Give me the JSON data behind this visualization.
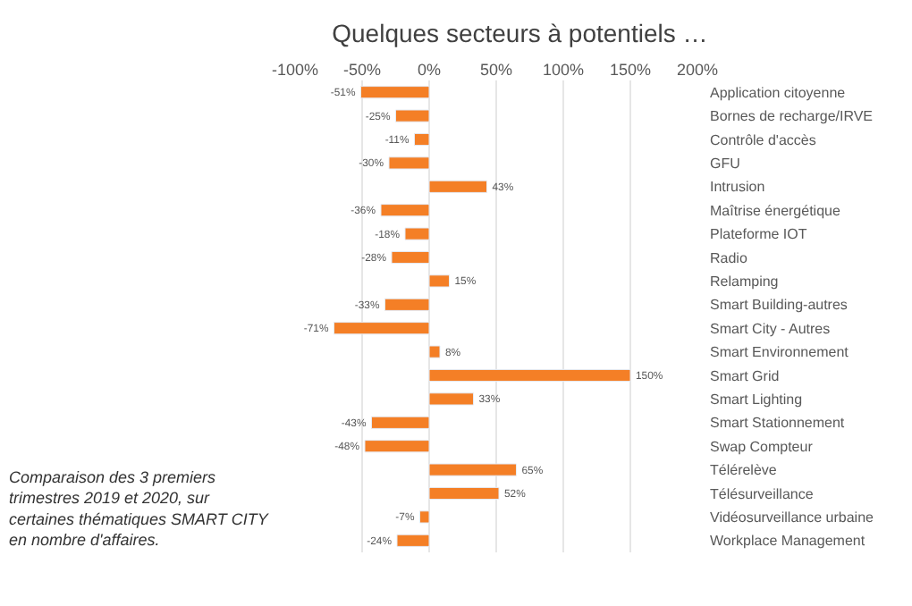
{
  "chart_data": {
    "type": "bar",
    "orientation": "horizontal",
    "title": "Quelques secteurs à potentiels …",
    "categories": [
      "Application citoyenne",
      "Bornes de recharge/IRVE",
      "Contrôle d'accès",
      "GFU",
      "Intrusion",
      "Maîtrise énergétique",
      "Plateforme IOT",
      "Radio",
      "Relamping",
      "Smart Building-autres",
      "Smart City - Autres",
      "Smart Environnement",
      "Smart Grid",
      "Smart Lighting",
      "Smart Stationnement",
      "Swap Compteur",
      "Télérelève",
      "Télésurveillance",
      "Vidéosurveillance urbaine",
      "Workplace Management"
    ],
    "values": [
      -51,
      -25,
      -11,
      -30,
      43,
      -36,
      -18,
      -28,
      15,
      -33,
      -71,
      8,
      150,
      33,
      -43,
      -48,
      65,
      52,
      -7,
      -24
    ],
    "value_labels": [
      "-51%",
      "-25%",
      "-11%",
      "-30%",
      "43%",
      "-36%",
      "-18%",
      "-28%",
      "15%",
      "-33%",
      "-71%",
      "8%",
      "150%",
      "33%",
      "-43%",
      "-48%",
      "65%",
      "52%",
      "-7%",
      "-24%"
    ],
    "color": "#f47f26",
    "xlim": [
      -100,
      200
    ],
    "xticks": [
      {
        "value": -100,
        "label": "-100%"
      },
      {
        "value": -50,
        "label": "-50%"
      },
      {
        "value": 0,
        "label": "0%"
      },
      {
        "value": 50,
        "label": "50%"
      },
      {
        "value": 100,
        "label": "100%"
      },
      {
        "value": 150,
        "label": "150%"
      },
      {
        "value": 200,
        "label": "200%"
      }
    ],
    "grid": "x",
    "legend": false,
    "annotations": [
      "Comparaison des 3 premiers\ntrimestres 2019 et 2020, sur\ncertaines thématiques SMART CITY\nen nombre d'affaires."
    ]
  }
}
